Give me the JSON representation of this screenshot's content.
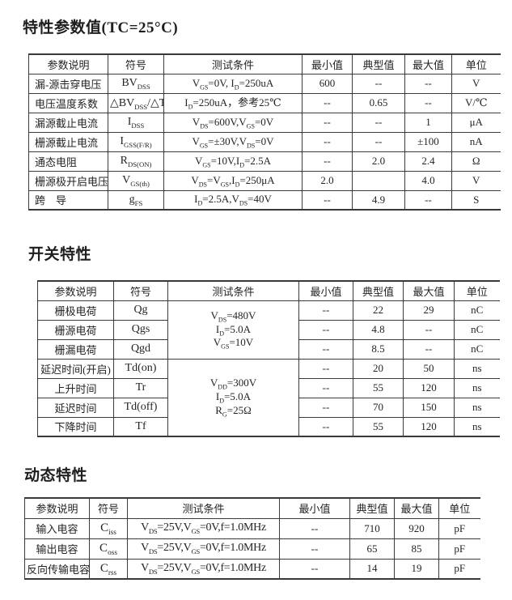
{
  "page_bg": "#ffffff",
  "text_color": "#242424",
  "border_color": "#3a3a3a",
  "sections": [
    {
      "title": "特性参数值(TC=25°C)",
      "table": {
        "headers": [
          "参数说明",
          "符号",
          "测试条件",
          "最小值",
          "典型值",
          "最大值",
          "单位"
        ],
        "rows": [
          [
            "漏-源击穿电压",
            "BV~DSS~",
            "V~GS~=0V, I~D~=250uA",
            "600",
            "--",
            "--",
            "V"
          ],
          [
            "电压温度系数",
            "△BV~DSS~/△T~J~",
            "I~D~=250uA，参考25℃",
            "--",
            "0.65",
            "--",
            "V/℃"
          ],
          [
            "漏源截止电流",
            "I~DSS~",
            "V~DS~=600V,V~GS~=0V",
            "--",
            "--",
            "1",
            "μA"
          ],
          [
            "栅源截止电流",
            "I~GSS(F/R)~",
            "V~GS~=±30V,V~DS~=0V",
            "--",
            "--",
            "±100",
            "nA"
          ],
          [
            "通态电阻",
            "R~DS(ON)~",
            "V~GS~=10V,I~D~=2.5A",
            "--",
            "2.0",
            "2.4",
            "Ω"
          ],
          [
            "栅源极开启电压",
            "V~GS(th)~",
            "V~DS~=V~GS~,I~D~=250μA",
            "2.0",
            "",
            "4.0",
            "V"
          ],
          [
            "跨　导",
            "g~FS~",
            "I~D~=2.5A,V~DS~=40V",
            "--",
            "4.9",
            "--",
            "S"
          ]
        ]
      }
    },
    {
      "title": "开关特性",
      "table": {
        "headers": [
          "参数说明",
          "符号",
          "测试条件",
          "最小值",
          "典型值",
          "最大值",
          "单位"
        ],
        "rows": [
          [
            "栅极电荷",
            "Qg",
            "V~DS~=480V\nI~D~=5.0A\nV~GS~=10V",
            "--",
            "22",
            "29",
            "nC"
          ],
          [
            "栅源电荷",
            "Qgs",
            "--",
            "4.8",
            "--",
            "nC"
          ],
          [
            "栅漏电荷",
            "Qgd",
            "--",
            "8.5",
            "--",
            "nC"
          ],
          [
            "延迟时间(开启)",
            "Td(on)",
            "V~DD~=300V\nI~D~=5.0A\nR~G~=25Ω",
            "--",
            "20",
            "50",
            "ns"
          ],
          [
            "上升时间",
            "Tr",
            "--",
            "55",
            "120",
            "ns"
          ],
          [
            "延迟时间",
            "Td(off)",
            "--",
            "70",
            "150",
            "ns"
          ],
          [
            "下降时间",
            "Tf",
            "--",
            "55",
            "120",
            "ns"
          ]
        ]
      }
    },
    {
      "title": "动态特性",
      "table": {
        "headers": [
          "参数说明",
          "符号",
          "测试条件",
          "最小值",
          "典型值",
          "最大值",
          "单位"
        ],
        "rows": [
          [
            "输入电容",
            "C~iss~",
            "V~DS~=25V,V~GS~=0V,f=1.0MHz",
            "--",
            "710",
            "920",
            "pF"
          ],
          [
            "输出电容",
            "C~oss~",
            "V~DS~=25V,V~GS~=0V,f=1.0MHz",
            "--",
            "65",
            "85",
            "pF"
          ],
          [
            "反向传输电容",
            "C~rss~",
            "V~DS~=25V,V~GS~=0V,f=1.0MHz",
            "--",
            "14",
            "19",
            "pF"
          ]
        ]
      }
    }
  ]
}
